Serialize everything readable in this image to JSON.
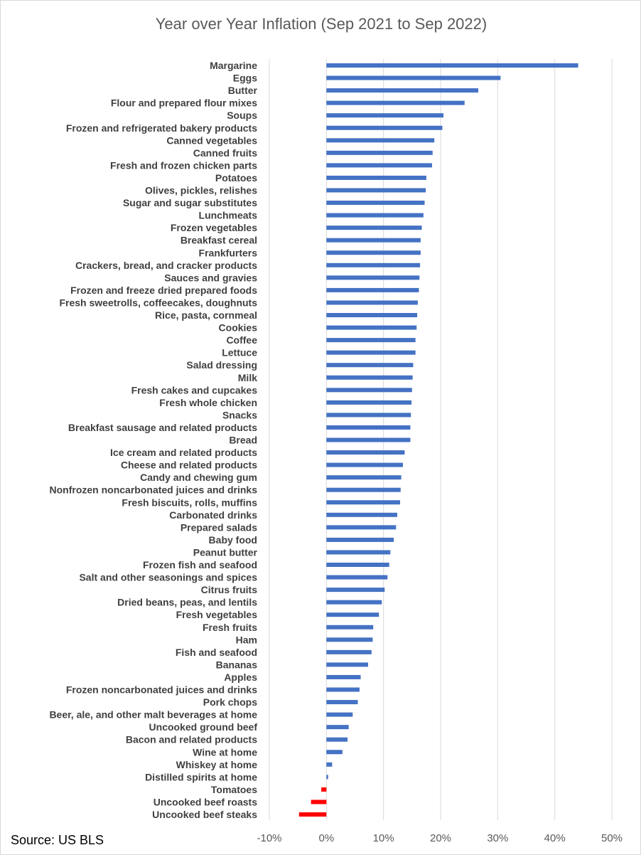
{
  "chart_data": {
    "type": "bar",
    "orientation": "horizontal",
    "title": "Year over Year Inflation (Sep 2021 to Sep 2022)",
    "source": "Source: US BLS",
    "xlim": [
      -10,
      50
    ],
    "x_ticks": [
      -10,
      0,
      10,
      20,
      30,
      40,
      50
    ],
    "x_tick_labels": [
      "-10%",
      "0%",
      "10%",
      "20%",
      "30%",
      "40%",
      "50%"
    ],
    "grid": true,
    "legend": "none",
    "colors": {
      "positive": "#4472c4",
      "negative": "#ff0000"
    },
    "categories": [
      "Margarine",
      "Eggs",
      "Butter",
      "Flour and prepared flour mixes",
      "Soups",
      "Frozen and refrigerated bakery products",
      "Canned vegetables",
      "Canned fruits",
      "Fresh and frozen chicken parts",
      "Potatoes",
      "Olives, pickles, relishes",
      "Sugar and sugar substitutes",
      "Lunchmeats",
      "Frozen vegetables",
      "Breakfast cereal",
      "Frankfurters",
      "Crackers, bread, and cracker products",
      "Sauces and gravies",
      "Frozen and freeze dried prepared foods",
      "Fresh sweetrolls, coffeecakes, doughnuts",
      "Rice, pasta, cornmeal",
      "Cookies",
      "Coffee",
      "Lettuce",
      "Salad dressing",
      "Milk",
      "Fresh cakes and cupcakes",
      "Fresh whole chicken",
      "Snacks",
      "Breakfast sausage and related products",
      "Bread",
      "Ice cream and related products",
      "Cheese and related products",
      "Candy and chewing gum",
      "Nonfrozen noncarbonated juices and drinks",
      "Fresh biscuits, rolls, muffins",
      "Carbonated drinks",
      "Prepared salads",
      "Baby food",
      "Peanut butter",
      "Frozen fish and seafood",
      "Salt and other seasonings and spices",
      "Citrus fruits",
      "Dried beans, peas, and lentils",
      "Fresh vegetables",
      "Fresh fruits",
      "Ham",
      "Fish and seafood",
      "Bananas",
      "Apples",
      "Frozen noncarbonated juices and drinks",
      "Pork chops",
      "Beer, ale, and other malt beverages at home",
      "Uncooked ground beef",
      "Bacon and related products",
      "Wine at home",
      "Whiskey at home",
      "Distilled spirits at home",
      "Tomatoes",
      "Uncooked beef roasts",
      "Uncooked beef steaks"
    ],
    "values": [
      44.1,
      30.5,
      26.6,
      24.2,
      20.5,
      20.3,
      18.9,
      18.6,
      18.5,
      17.5,
      17.4,
      17.2,
      17.0,
      16.7,
      16.5,
      16.5,
      16.4,
      16.3,
      16.2,
      16.0,
      15.9,
      15.8,
      15.6,
      15.6,
      15.2,
      15.1,
      15.0,
      14.9,
      14.8,
      14.7,
      14.7,
      13.7,
      13.4,
      13.1,
      13.0,
      12.9,
      12.4,
      12.2,
      11.8,
      11.2,
      11.0,
      10.7,
      10.2,
      9.7,
      9.2,
      8.2,
      8.1,
      7.9,
      7.3,
      6.0,
      5.8,
      5.5,
      4.6,
      3.9,
      3.7,
      2.8,
      1.0,
      0.3,
      -0.9,
      -2.7,
      -4.8
    ]
  }
}
